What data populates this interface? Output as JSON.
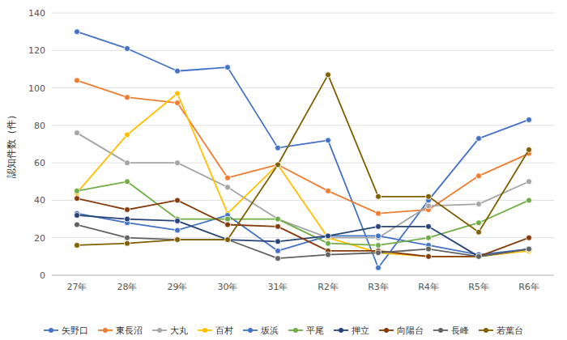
{
  "chart_data": {
    "type": "line",
    "ylabel": "認知件数（件）",
    "categories": [
      "27年",
      "28年",
      "29年",
      "30年",
      "31年",
      "R2年",
      "R3年",
      "R4年",
      "R5年",
      "R6年"
    ],
    "series": [
      {
        "name": "矢野口",
        "color": "#4472C4",
        "marker": "o",
        "values": [
          130,
          121,
          109,
          111,
          68,
          72,
          4,
          40,
          73,
          83
        ]
      },
      {
        "name": "東長沼",
        "color": "#ED7D31",
        "marker": "o",
        "values": [
          104,
          95,
          92,
          52,
          59,
          45,
          33,
          35,
          53,
          65
        ]
      },
      {
        "name": "大丸",
        "color": "#A5A5A5",
        "marker": "o",
        "values": [
          76,
          60,
          60,
          47,
          30,
          20,
          20,
          37,
          38,
          50
        ]
      },
      {
        "name": "百村",
        "color": "#FFC000",
        "marker": "o",
        "values": [
          44,
          75,
          97,
          33,
          59,
          20,
          12,
          10,
          10,
          13
        ]
      },
      {
        "name": "坂浜",
        "color": "#4472C4",
        "marker": "o",
        "values": [
          33,
          28,
          24,
          32,
          13,
          21,
          21,
          16,
          11,
          14
        ]
      },
      {
        "name": "平尾",
        "color": "#70AD47",
        "marker": "o",
        "values": [
          45,
          50,
          30,
          30,
          30,
          17,
          16,
          20,
          28,
          40
        ]
      },
      {
        "name": "押立",
        "color": "#264478",
        "marker": "o",
        "values": [
          32,
          30,
          29,
          19,
          18,
          21,
          26,
          26,
          10,
          14
        ]
      },
      {
        "name": "向陽台",
        "color": "#843C0C",
        "marker": "o",
        "values": [
          41,
          35,
          40,
          27,
          26,
          13,
          13,
          10,
          10,
          20
        ]
      },
      {
        "name": "長峰",
        "color": "#636363",
        "marker": "o",
        "values": [
          27,
          20,
          19,
          19,
          9,
          11,
          12,
          14,
          10,
          14
        ]
      },
      {
        "name": "若葉台",
        "color": "#7F6000",
        "marker": "o",
        "values": [
          16,
          17,
          19,
          19,
          59,
          107,
          42,
          42,
          23,
          67
        ]
      }
    ],
    "ylim": [
      0,
      140
    ],
    "yticks": [
      0,
      20,
      40,
      60,
      80,
      100,
      120,
      140
    ],
    "grid": true,
    "legend": "bottom"
  }
}
